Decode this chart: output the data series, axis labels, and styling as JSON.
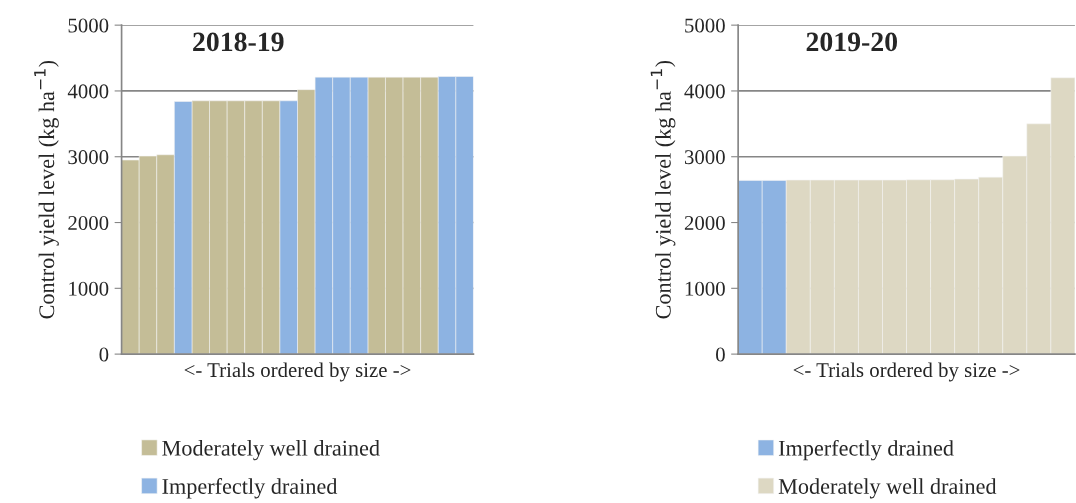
{
  "chart_data": [
    {
      "type": "bar",
      "title": "2018-19",
      "xlabel": "<- Trials ordered by size ->",
      "ylabel": "Control yield level (kg ha$^{−1}$)",
      "categories": [
        null,
        null,
        null,
        null,
        null,
        null,
        null,
        null,
        null,
        null,
        null,
        null,
        null,
        null,
        null,
        null,
        null,
        null,
        null,
        null
      ],
      "ylim": [
        0,
        5000
      ],
      "yticks": [
        0,
        1000,
        2000,
        3000,
        4000,
        5000
      ],
      "tick_labels": "y",
      "grid": "y",
      "legend": "bottom",
      "series": [
        {
          "name": "Moderately well drained",
          "color": "#c4bd97",
          "values": [
            2950,
            3010,
            3030,
            null,
            3850,
            3850,
            3850,
            3850,
            3850,
            null,
            4020,
            null,
            null,
            null,
            4210,
            4210,
            4210,
            4210,
            null,
            null
          ]
        },
        {
          "name": "Imperfectly drained",
          "color": "#8db3e2",
          "values": [
            null,
            null,
            null,
            3840,
            null,
            null,
            null,
            null,
            null,
            3850,
            null,
            4210,
            4210,
            4210,
            null,
            null,
            null,
            null,
            4220,
            4220
          ]
        }
      ]
    },
    {
      "type": "bar",
      "title": "2019-20",
      "xlabel": "<- Trials ordered by size ->",
      "ylabel": "Control yield level (kg ha$^{−1}$)",
      "categories": [
        null,
        null,
        null,
        null,
        null,
        null,
        null,
        null,
        null,
        null,
        null,
        null,
        null,
        null
      ],
      "ylim": [
        0,
        5000
      ],
      "yticks": [
        0,
        1000,
        2000,
        3000,
        4000,
        5000
      ],
      "tick_labels": "y",
      "grid": "y",
      "legend": "bottom",
      "series": [
        {
          "name": "Imperfectly drained",
          "color": "#8db3e2",
          "values": [
            2640,
            2640,
            null,
            null,
            null,
            null,
            null,
            null,
            null,
            null,
            null,
            null,
            null,
            null
          ]
        },
        {
          "name": "Moderately well drained",
          "color": "#ddd8c3",
          "values": [
            null,
            null,
            2645,
            2645,
            2645,
            2645,
            2645,
            2650,
            2650,
            2660,
            2690,
            3010,
            3500,
            4200
          ]
        }
      ]
    }
  ]
}
